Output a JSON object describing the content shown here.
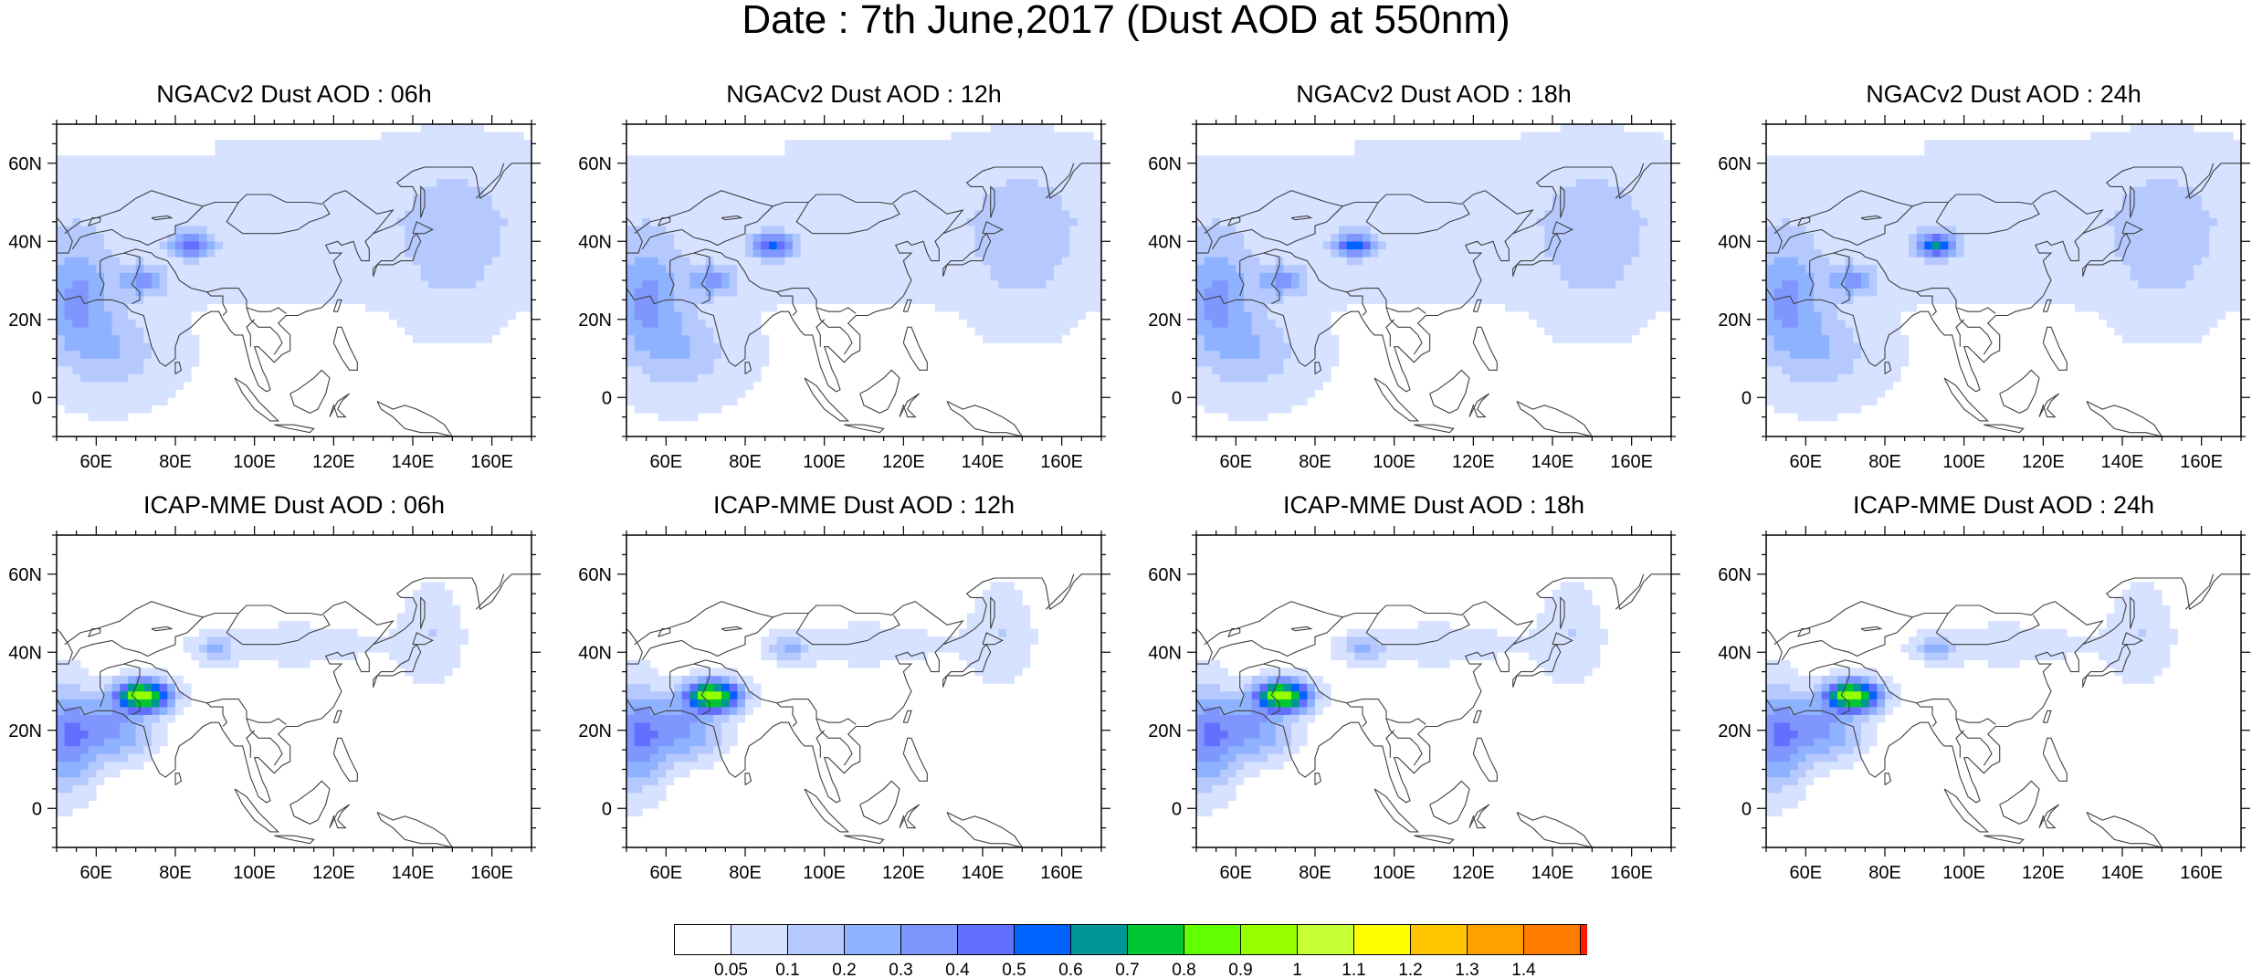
{
  "title": "Date : 7th June,2017 (Dust AOD at 550nm)",
  "panels": [
    {
      "title": "NGACv2 Dust AOD : 06h",
      "model": "NGACv2",
      "forecast_hour": "06h"
    },
    {
      "title": "NGACv2 Dust AOD : 12h",
      "model": "NGACv2",
      "forecast_hour": "12h"
    },
    {
      "title": "NGACv2 Dust AOD : 18h",
      "model": "NGACv2",
      "forecast_hour": "18h"
    },
    {
      "title": "NGACv2 Dust AOD : 24h",
      "model": "NGACv2",
      "forecast_hour": "24h"
    },
    {
      "title": "ICAP-MME Dust AOD : 06h",
      "model": "ICAP-MME",
      "forecast_hour": "06h"
    },
    {
      "title": "ICAP-MME Dust AOD : 12h",
      "model": "ICAP-MME",
      "forecast_hour": "12h"
    },
    {
      "title": "ICAP-MME Dust AOD : 18h",
      "model": "ICAP-MME",
      "forecast_hour": "18h"
    },
    {
      "title": "ICAP-MME Dust AOD : 24h",
      "model": "ICAP-MME",
      "forecast_hour": "24h"
    }
  ],
  "map_extent": {
    "lon_min": 50,
    "lon_max": 170,
    "lat_min": -10,
    "lat_max": 70
  },
  "x_ticks": [
    {
      "value": 60,
      "label": "60E"
    },
    {
      "value": 80,
      "label": "80E"
    },
    {
      "value": 100,
      "label": "100E"
    },
    {
      "value": 120,
      "label": "120E"
    },
    {
      "value": 140,
      "label": "140E"
    },
    {
      "value": 160,
      "label": "160E"
    }
  ],
  "y_ticks": [
    {
      "value": 0,
      "label": "0"
    },
    {
      "value": 20,
      "label": "20N"
    },
    {
      "value": 40,
      "label": "40N"
    },
    {
      "value": 60,
      "label": "60N"
    }
  ],
  "colorbar": {
    "levels": [
      "0.05",
      "0.1",
      "0.2",
      "0.3",
      "0.4",
      "0.5",
      "0.6",
      "0.7",
      "0.8",
      "0.9",
      "1",
      "1.1",
      "1.2",
      "1.3",
      "1.4"
    ],
    "colors": [
      "#ffffff",
      "#d6e2ff",
      "#b5c9ff",
      "#8eb2ff",
      "#7f96ff",
      "#6370ff",
      "#0063ff",
      "#009696",
      "#00c633",
      "#63ff00",
      "#96ff00",
      "#c6ff33",
      "#ffff00",
      "#ffc600",
      "#ffa000",
      "#ff7c00",
      "#ff1900"
    ]
  },
  "colors": {
    "land_outline": "#404040",
    "frame": "#000000"
  }
}
